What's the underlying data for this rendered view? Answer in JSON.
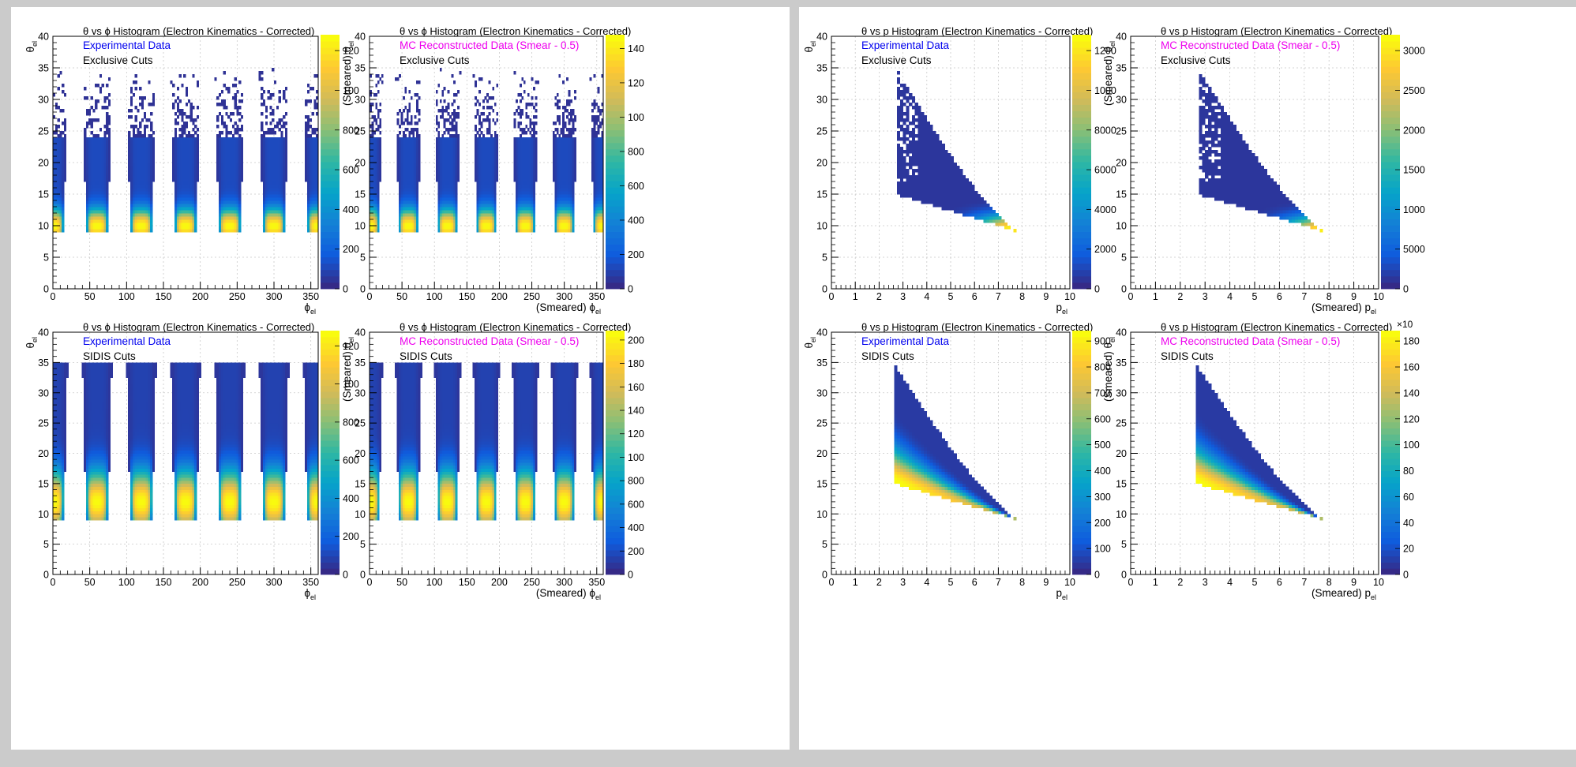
{
  "canvases": [
    {
      "name": "theta-vs-phi-canvas",
      "pads": [
        {
          "row": 0,
          "col": 0,
          "title": "θ vs ϕ  Histogram (Electron Kinematics - Corrected)",
          "legend": [
            {
              "text": "Experimental Data",
              "color": "#0000ee"
            },
            {
              "text": "Exclusive Cuts",
              "color": "#000000"
            }
          ],
          "xlabel": "ϕ",
          "xlabel_sub": "el",
          "ylabel": "θ",
          "ylabel_sub": "el",
          "palette_ticks": [
            "0",
            "200",
            "400",
            "600",
            "800",
            "100",
            "120"
          ]
        },
        {
          "row": 0,
          "col": 1,
          "title": "θ vs ϕ Histogram (Electron Kinematics - Corrected)",
          "legend": [
            {
              "text": "MC Reconstructed Data (Smear - 0.5)",
              "color": "#ee00ee"
            },
            {
              "text": "Exclusive Cuts",
              "color": "#000000"
            }
          ],
          "xlabel": "(Smeared)  ϕ",
          "xlabel_sub": "el",
          "ylabel": "(Smeared)  θ",
          "ylabel_sub": "el",
          "palette_ticks": [
            "0",
            "200",
            "400",
            "600",
            "800",
            "100",
            "120",
            "140"
          ]
        },
        {
          "row": 1,
          "col": 0,
          "title": "θ vs ϕ  Histogram (Electron Kinematics - Corrected)",
          "legend": [
            {
              "text": "Experimental Data",
              "color": "#0000ee"
            },
            {
              "text": "SIDIS Cuts",
              "color": "#000000"
            }
          ],
          "xlabel": "ϕ",
          "xlabel_sub": "el",
          "ylabel": "θ",
          "ylabel_sub": "el",
          "palette_ticks": [
            "0",
            "200",
            "400",
            "600",
            "800",
            "100",
            "120"
          ]
        },
        {
          "row": 1,
          "col": 1,
          "title": "θ vs ϕ Histogram (Electron Kinematics - Corrected)",
          "legend": [
            {
              "text": "MC Reconstructed Data (Smear - 0.5)",
              "color": "#ee00ee"
            },
            {
              "text": "SIDIS Cuts",
              "color": "#000000"
            }
          ],
          "xlabel": "(Smeared)  ϕ",
          "xlabel_sub": "el",
          "ylabel": "(Smeared)  θ",
          "ylabel_sub": "el",
          "palette_ticks": [
            "0",
            "200",
            "400",
            "600",
            "800",
            "100",
            "120",
            "140",
            "160",
            "180",
            "200"
          ]
        }
      ]
    },
    {
      "name": "theta-vs-p-canvas",
      "pads": [
        {
          "row": 0,
          "col": 0,
          "title": "θ  vs p Histogram (Electron Kinematics - Corrected)",
          "legend": [
            {
              "text": "Experimental Data",
              "color": "#0000ee"
            },
            {
              "text": "Exclusive Cuts",
              "color": "#000000"
            }
          ],
          "xlabel": "p",
          "xlabel_sub": "el",
          "ylabel": "θ",
          "ylabel_sub": "el",
          "palette_ticks": [
            "0",
            "2000",
            "4000",
            "6000",
            "8000",
            "1000",
            "1200"
          ]
        },
        {
          "row": 0,
          "col": 1,
          "title": "θ vs p Histogram (Electron Kinematics - Corrected)",
          "legend": [
            {
              "text": "MC Reconstructed Data (Smear - 0.5)",
              "color": "#ee00ee"
            },
            {
              "text": "Exclusive Cuts",
              "color": "#000000"
            }
          ],
          "xlabel": "(Smeared) p",
          "xlabel_sub": "el",
          "ylabel": "(Smeared)  θ",
          "ylabel_sub": "el",
          "palette_ticks": [
            "0",
            "5000",
            "1000",
            "1500",
            "2000",
            "2500",
            "3000"
          ]
        },
        {
          "row": 1,
          "col": 0,
          "title": "θ  vs p Histogram (Electron Kinematics - Corrected)",
          "legend": [
            {
              "text": "Experimental Data",
              "color": "#0000ee"
            },
            {
              "text": "SIDIS Cuts",
              "color": "#000000"
            }
          ],
          "xlabel": "p",
          "xlabel_sub": "el",
          "ylabel": "θ",
          "ylabel_sub": "el",
          "palette_ticks": [
            "0",
            "100",
            "200",
            "300",
            "400",
            "500",
            "600",
            "700",
            "800",
            "900"
          ]
        },
        {
          "row": 1,
          "col": 1,
          "title": "θ vs p Histogram (Electron Kinematics - Corrected)",
          "legend": [
            {
              "text": "MC Reconstructed Data (Smear - 0.5)",
              "color": "#ee00ee"
            },
            {
              "text": "SIDIS Cuts",
              "color": "#000000"
            }
          ],
          "xlabel": "(Smeared) p",
          "xlabel_sub": "el",
          "ylabel": "(Smeared)  θ",
          "ylabel_sub": "el",
          "palette_ticks": [
            "0",
            "20",
            "40",
            "60",
            "80",
            "100",
            "120",
            "140",
            "160",
            "180"
          ],
          "palette_exponent": "×10"
        }
      ]
    }
  ],
  "chart_data": [
    {
      "type": "heatmap",
      "title": "θ vs ϕ  Histogram (Electron Kinematics - Corrected)",
      "legend": [
        "Experimental Data",
        "Exclusive Cuts"
      ],
      "xlabel": "ϕ el",
      "ylabel": "θ el",
      "xlim": [
        0,
        360
      ],
      "ylim": [
        0,
        40
      ],
      "x_ticks": [
        0,
        50,
        100,
        150,
        200,
        250,
        300,
        350
      ],
      "y_ticks": [
        0,
        5,
        10,
        15,
        20,
        25,
        30,
        35,
        40
      ],
      "z_range": [
        0,
        1100
      ],
      "sector_centers_phi": [
        0,
        60,
        120,
        180,
        240,
        300,
        360
      ],
      "theta_min": 9,
      "theta_dense_max": 24,
      "theta_sparse_max": 35,
      "peak_theta": 10,
      "grid": true
    },
    {
      "type": "heatmap",
      "title": "θ vs ϕ Histogram (Electron Kinematics - Corrected)",
      "legend": [
        "MC Reconstructed Data (Smear - 0.5)",
        "Exclusive Cuts"
      ],
      "xlabel": "(Smeared) ϕ el",
      "ylabel": "(Smeared) θ el",
      "xlim": [
        0,
        360
      ],
      "ylim": [
        0,
        40
      ],
      "x_ticks": [
        0,
        50,
        100,
        150,
        200,
        250,
        300,
        350
      ],
      "y_ticks": [
        0,
        5,
        10,
        15,
        20,
        25,
        30,
        35,
        40
      ],
      "z_range": [
        0,
        1500
      ],
      "sector_centers_phi": [
        0,
        60,
        120,
        180,
        240,
        300,
        360
      ],
      "theta_min": 9,
      "theta_dense_max": 24,
      "theta_sparse_max": 35,
      "peak_theta": 10,
      "grid": true
    },
    {
      "type": "heatmap",
      "title": "θ vs ϕ  Histogram (Electron Kinematics - Corrected)",
      "legend": [
        "Experimental Data",
        "SIDIS Cuts"
      ],
      "xlabel": "ϕ el",
      "ylabel": "θ el",
      "xlim": [
        0,
        360
      ],
      "ylim": [
        0,
        40
      ],
      "x_ticks": [
        0,
        50,
        100,
        150,
        200,
        250,
        300,
        350
      ],
      "y_ticks": [
        0,
        5,
        10,
        15,
        20,
        25,
        30,
        35,
        40
      ],
      "z_range": [
        0,
        1200
      ],
      "sector_centers_phi": [
        0,
        60,
        120,
        180,
        240,
        300,
        360
      ],
      "theta_min": 9,
      "theta_dense_max": 35,
      "peak_theta": 12,
      "grid": true
    },
    {
      "type": "heatmap",
      "title": "θ vs ϕ Histogram (Electron Kinematics - Corrected)",
      "legend": [
        "MC Reconstructed Data (Smear - 0.5)",
        "SIDIS Cuts"
      ],
      "xlabel": "(Smeared) ϕ el",
      "ylabel": "(Smeared) θ el",
      "xlim": [
        0,
        360
      ],
      "ylim": [
        0,
        40
      ],
      "x_ticks": [
        0,
        50,
        100,
        150,
        200,
        250,
        300,
        350
      ],
      "y_ticks": [
        0,
        5,
        10,
        15,
        20,
        25,
        30,
        35,
        40
      ],
      "z_range": [
        0,
        2100
      ],
      "sector_centers_phi": [
        0,
        60,
        120,
        180,
        240,
        300,
        360
      ],
      "theta_min": 9,
      "theta_dense_max": 35,
      "peak_theta": 12,
      "grid": true
    },
    {
      "type": "heatmap",
      "title": "θ  vs p Histogram (Electron Kinematics - Corrected)",
      "legend": [
        "Experimental Data",
        "Exclusive Cuts"
      ],
      "xlabel": "p el",
      "ylabel": "θ el",
      "xlim": [
        0,
        10
      ],
      "ylim": [
        0,
        40
      ],
      "x_ticks": [
        0,
        1,
        2,
        3,
        4,
        5,
        6,
        7,
        8,
        9,
        10
      ],
      "y_ticks": [
        0,
        5,
        10,
        15,
        20,
        25,
        30,
        35,
        40
      ],
      "z_range": [
        0,
        13000
      ],
      "region": {
        "p_min": 2.7,
        "p_max": 7.9,
        "theta_min": 9,
        "theta_max": 35
      },
      "peak": {
        "p": 7.5,
        "theta": 9.5
      },
      "grid": true
    },
    {
      "type": "heatmap",
      "title": "θ vs p Histogram (Electron Kinematics - Corrected)",
      "legend": [
        "MC Reconstructed Data (Smear - 0.5)",
        "Exclusive Cuts"
      ],
      "xlabel": "(Smeared) p el",
      "ylabel": "(Smeared) θ el",
      "xlim": [
        0,
        10
      ],
      "ylim": [
        0,
        40
      ],
      "x_ticks": [
        0,
        1,
        2,
        3,
        4,
        5,
        6,
        7,
        8,
        9,
        10
      ],
      "y_ticks": [
        0,
        5,
        10,
        15,
        20,
        25,
        30,
        35,
        40
      ],
      "z_range": [
        0,
        33000
      ],
      "region": {
        "p_min": 2.7,
        "p_max": 7.9,
        "theta_min": 9,
        "theta_max": 35
      },
      "peak": {
        "p": 7.7,
        "theta": 9.3
      },
      "grid": true
    },
    {
      "type": "heatmap",
      "title": "θ  vs p Histogram (Electron Kinematics - Corrected)",
      "legend": [
        "Experimental Data",
        "SIDIS Cuts"
      ],
      "xlabel": "p el",
      "ylabel": "θ el",
      "xlim": [
        0,
        10
      ],
      "ylim": [
        0,
        40
      ],
      "x_ticks": [
        0,
        1,
        2,
        3,
        4,
        5,
        6,
        7,
        8,
        9,
        10
      ],
      "y_ticks": [
        0,
        5,
        10,
        15,
        20,
        25,
        30,
        35,
        40
      ],
      "z_range": [
        0,
        9800
      ],
      "region": {
        "p_min": 2.6,
        "p_max": 7.9,
        "theta_min": 9,
        "theta_max": 35
      },
      "peak": {
        "p": 3.5,
        "theta": 14
      },
      "grid": true
    },
    {
      "type": "heatmap",
      "title": "θ vs p Histogram (Electron Kinematics - Corrected)",
      "legend": [
        "MC Reconstructed Data (Smear - 0.5)",
        "SIDIS Cuts"
      ],
      "xlabel": "(Smeared) p el",
      "ylabel": "(Smeared) θ el",
      "xlim": [
        0,
        10
      ],
      "ylim": [
        0,
        40
      ],
      "x_ticks": [
        0,
        1,
        2,
        3,
        4,
        5,
        6,
        7,
        8,
        9,
        10
      ],
      "y_ticks": [
        0,
        5,
        10,
        15,
        20,
        25,
        30,
        35,
        40
      ],
      "z_range": [
        0,
        19000
      ],
      "region": {
        "p_min": 2.6,
        "p_max": 7.9,
        "theta_min": 9,
        "theta_max": 35
      },
      "peak": {
        "p": 3.2,
        "theta": 14
      },
      "grid": true
    }
  ]
}
